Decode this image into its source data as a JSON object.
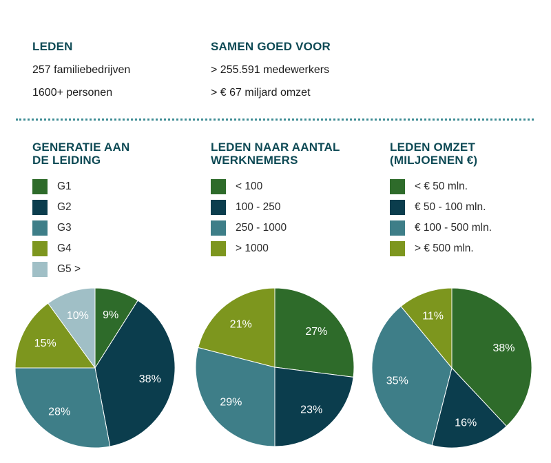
{
  "summary": {
    "leden_title": "LEDEN",
    "leden_lines": [
      "257 familiebedrijven",
      "1600+ personen"
    ],
    "samen_title": "SAMEN GOED VOOR",
    "samen_lines": [
      "> 255.591 medewerkers",
      "> € 67 miljard omzet"
    ]
  },
  "colors": {
    "heading": "#0e4a55",
    "dark_green": "#2e6b2a",
    "dark_teal": "#0b3d4d",
    "mid_teal": "#3e7e88",
    "olive": "#7d961e",
    "light_blue": "#a0bfc6",
    "divider": "#3d8c94"
  },
  "chart_data": [
    {
      "type": "pie",
      "title_lines": [
        "GENERATIE AAN",
        "DE LEIDING"
      ],
      "categories": [
        "G1",
        "G2",
        "G3",
        "G4",
        "G5 >"
      ],
      "values": [
        9,
        38,
        28,
        15,
        10
      ],
      "labels": [
        "9%",
        "38%",
        "28%",
        "15%",
        "10%"
      ],
      "colors": [
        "#2e6b2a",
        "#0b3d4d",
        "#3e7e88",
        "#7d961e",
        "#a0bfc6"
      ]
    },
    {
      "type": "pie",
      "title_lines": [
        "LEDEN NAAR AANTAL",
        "WERKNEMERS"
      ],
      "categories": [
        "< 100",
        "100 - 250",
        "250 - 1000",
        "> 1000"
      ],
      "values": [
        27,
        23,
        29,
        21
      ],
      "labels": [
        "27%",
        "23%",
        "29%",
        "21%"
      ],
      "colors": [
        "#2e6b2a",
        "#0b3d4d",
        "#3e7e88",
        "#7d961e"
      ]
    },
    {
      "type": "pie",
      "title_lines": [
        "LEDEN OMZET",
        "(MILJOENEN €)"
      ],
      "categories": [
        "< € 50 mln.",
        "€ 50 - 100 mln.",
        "€ 100 - 500 mln.",
        "> € 500 mln."
      ],
      "values": [
        38,
        16,
        35,
        11
      ],
      "labels": [
        "38%",
        "16%",
        "35%",
        "11%"
      ],
      "colors": [
        "#2e6b2a",
        "#0b3d4d",
        "#3e7e88",
        "#7d961e"
      ]
    }
  ]
}
